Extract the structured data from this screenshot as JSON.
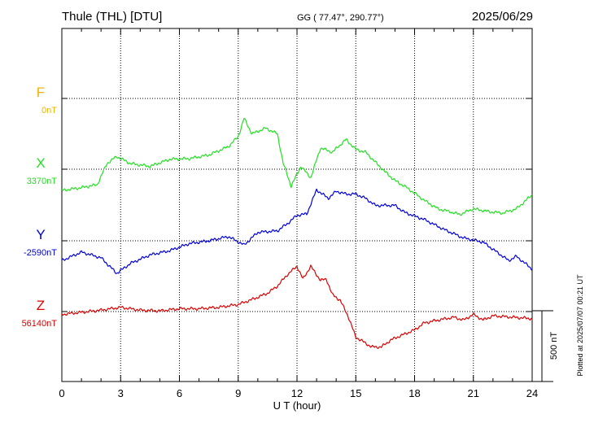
{
  "header": {
    "station": "Thule (THL)  [DTU]",
    "coords": "GG ( 77.47°, 290.77°)",
    "date": "2025/06/29"
  },
  "side_note": "Plotted at 2025/07/07 00:21 UT",
  "scale_bar_label": "500 nT",
  "chart_data": {
    "type": "line",
    "title": "Thule (THL)  [DTU]",
    "xlabel": "U T (hour)",
    "xlim": [
      0,
      24
    ],
    "x_ticks": [
      0,
      3,
      6,
      9,
      12,
      15,
      18,
      21,
      24
    ],
    "grid": "dotted",
    "y_units": "nT",
    "scale_bar_nT": 500,
    "series": [
      {
        "name": "F",
        "baseline_label": "0nT",
        "color": "#f0b400",
        "points": []
      },
      {
        "name": "X",
        "baseline_label": "3370nT",
        "color": "#22e022",
        "points": [
          [
            0,
            -150
          ],
          [
            1,
            -130
          ],
          [
            1.8,
            -110
          ],
          [
            2.3,
            40
          ],
          [
            2.8,
            90
          ],
          [
            3.5,
            40
          ],
          [
            4.5,
            20
          ],
          [
            5.5,
            70
          ],
          [
            6.5,
            75
          ],
          [
            7.5,
            100
          ],
          [
            8.5,
            160
          ],
          [
            9.0,
            230
          ],
          [
            9.3,
            360
          ],
          [
            9.7,
            250
          ],
          [
            10.4,
            290
          ],
          [
            11.0,
            250
          ],
          [
            11.3,
            40
          ],
          [
            11.7,
            -120
          ],
          [
            12.2,
            20
          ],
          [
            12.7,
            -60
          ],
          [
            13.2,
            150
          ],
          [
            13.8,
            120
          ],
          [
            14.5,
            210
          ],
          [
            15.0,
            140
          ],
          [
            15.5,
            120
          ],
          [
            16.0,
            50
          ],
          [
            16.5,
            -20
          ],
          [
            17.0,
            -80
          ],
          [
            17.6,
            -130
          ],
          [
            18.1,
            -180
          ],
          [
            18.6,
            -230
          ],
          [
            19.2,
            -280
          ],
          [
            19.8,
            -300
          ],
          [
            20.3,
            -320
          ],
          [
            21.0,
            -280
          ],
          [
            21.8,
            -300
          ],
          [
            22.5,
            -310
          ],
          [
            23.2,
            -280
          ],
          [
            24,
            -180
          ]
        ]
      },
      {
        "name": "Y",
        "baseline_label": "-2590nT",
        "color": "#0000dd",
        "points": [
          [
            0,
            -140
          ],
          [
            1,
            -80
          ],
          [
            2,
            -120
          ],
          [
            2.8,
            -230
          ],
          [
            3.5,
            -160
          ],
          [
            4.5,
            -100
          ],
          [
            5.5,
            -70
          ],
          [
            6.5,
            -20
          ],
          [
            7.5,
            0
          ],
          [
            8.5,
            30
          ],
          [
            9.3,
            -30
          ],
          [
            10.0,
            60
          ],
          [
            11.0,
            70
          ],
          [
            11.5,
            120
          ],
          [
            12.0,
            180
          ],
          [
            12.5,
            190
          ],
          [
            13.0,
            360
          ],
          [
            13.6,
            300
          ],
          [
            14.0,
            350
          ],
          [
            14.5,
            330
          ],
          [
            15.0,
            330
          ],
          [
            15.5,
            300
          ],
          [
            16.0,
            250
          ],
          [
            17.0,
            250
          ],
          [
            17.5,
            200
          ],
          [
            18.5,
            150
          ],
          [
            19.5,
            80
          ],
          [
            20.5,
            20
          ],
          [
            21.5,
            -10
          ],
          [
            22.2,
            -80
          ],
          [
            22.8,
            -140
          ],
          [
            23.2,
            -110
          ],
          [
            24,
            -200
          ]
        ]
      },
      {
        "name": "Z",
        "baseline_label": "56140nT",
        "color": "#dd0000",
        "points": [
          [
            0,
            -20
          ],
          [
            1,
            -5
          ],
          [
            2,
            10
          ],
          [
            3,
            30
          ],
          [
            4,
            10
          ],
          [
            5,
            5
          ],
          [
            6,
            20
          ],
          [
            7,
            20
          ],
          [
            8,
            30
          ],
          [
            9,
            50
          ],
          [
            9.8,
            90
          ],
          [
            10.5,
            130
          ],
          [
            11.0,
            180
          ],
          [
            11.5,
            260
          ],
          [
            12.0,
            320
          ],
          [
            12.3,
            230
          ],
          [
            12.7,
            320
          ],
          [
            13.2,
            220
          ],
          [
            13.5,
            230
          ],
          [
            13.8,
            120
          ],
          [
            14.2,
            80
          ],
          [
            14.6,
            -30
          ],
          [
            15.0,
            -180
          ],
          [
            15.8,
            -250
          ],
          [
            16.3,
            -250
          ],
          [
            16.8,
            -200
          ],
          [
            17.3,
            -170
          ],
          [
            18,
            -130
          ],
          [
            18.5,
            -80
          ],
          [
            19.2,
            -60
          ],
          [
            20.0,
            -40
          ],
          [
            20.5,
            -60
          ],
          [
            21.0,
            -20
          ],
          [
            21.5,
            -60
          ],
          [
            22.0,
            -30
          ],
          [
            23.0,
            -40
          ],
          [
            24,
            -50
          ]
        ]
      }
    ]
  }
}
